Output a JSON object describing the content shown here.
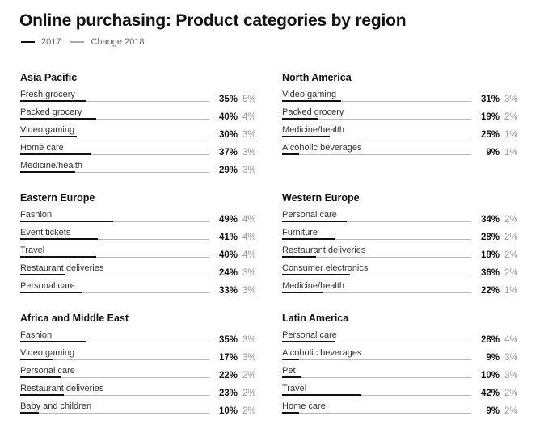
{
  "title": "Online purchasing: Product categories by region",
  "legend": {
    "primary": "2017",
    "secondary": "Change 2018"
  },
  "colors": {
    "bar_2017": "#111111",
    "baseline": "#b8b8b8",
    "change_text": "#999999"
  },
  "chart_data": {
    "type": "bar",
    "title": "Online purchasing: Product categories by region",
    "series_names": [
      "2017",
      "Change 2018"
    ],
    "xlim": [
      0,
      100
    ],
    "grid": false,
    "legend_position": "top-left",
    "panels": [
      {
        "region": "Asia Pacific",
        "rows": [
          {
            "label": "Fresh grocery",
            "value": 35,
            "value_text": "35%",
            "change": 5,
            "change_text": "5%"
          },
          {
            "label": "Packed grocery",
            "value": 40,
            "value_text": "40%",
            "change": 4,
            "change_text": "4%"
          },
          {
            "label": "Video gaming",
            "value": 30,
            "value_text": "30%",
            "change": 3,
            "change_text": "3%"
          },
          {
            "label": "Home care",
            "value": 37,
            "value_text": "37%",
            "change": 3,
            "change_text": "3%"
          },
          {
            "label": "Medicine/health",
            "value": 29,
            "value_text": "29%",
            "change": 3,
            "change_text": "3%"
          }
        ]
      },
      {
        "region": "North America",
        "rows": [
          {
            "label": "Video gaming",
            "value": 31,
            "value_text": "31%",
            "change": 3,
            "change_text": "3%"
          },
          {
            "label": "Packed grocery",
            "value": 19,
            "value_text": "19%",
            "change": 2,
            "change_text": "2%"
          },
          {
            "label": "Medicine/health",
            "value": 25,
            "value_text": "25%",
            "change": 1,
            "change_text": "1%"
          },
          {
            "label": "Alcoholic beverages",
            "value": 9,
            "value_text": "9%",
            "change": 1,
            "change_text": "1%"
          }
        ]
      },
      {
        "region": "Eastern Europe",
        "rows": [
          {
            "label": "Fashion",
            "value": 49,
            "value_text": "49%",
            "change": 4,
            "change_text": "4%"
          },
          {
            "label": "Event tickets",
            "value": 41,
            "value_text": "41%",
            "change": 4,
            "change_text": "4%"
          },
          {
            "label": "Travel",
            "value": 40,
            "value_text": "40%",
            "change": 4,
            "change_text": "4%"
          },
          {
            "label": "Restaurant deliveries",
            "value": 24,
            "value_text": "24%",
            "change": 3,
            "change_text": "3%"
          },
          {
            "label": "Personal care",
            "value": 33,
            "value_text": "33%",
            "change": 3,
            "change_text": "3%"
          }
        ]
      },
      {
        "region": "Western Europe",
        "rows": [
          {
            "label": "Personal care",
            "value": 34,
            "value_text": "34%",
            "change": 2,
            "change_text": "2%"
          },
          {
            "label": "Furniture",
            "value": 28,
            "value_text": "28%",
            "change": 2,
            "change_text": "2%"
          },
          {
            "label": "Restaurant deliveries",
            "value": 18,
            "value_text": "18%",
            "change": 2,
            "change_text": "2%"
          },
          {
            "label": "Consumer electronics",
            "value": 36,
            "value_text": "36%",
            "change": 2,
            "change_text": "2%"
          },
          {
            "label": "Medicine/health",
            "value": 22,
            "value_text": "22%",
            "change": 1,
            "change_text": "1%"
          }
        ]
      },
      {
        "region": "Africa and Middle East",
        "rows": [
          {
            "label": "Fashion",
            "value": 35,
            "value_text": "35%",
            "change": 3,
            "change_text": "3%"
          },
          {
            "label": "Video gaming",
            "value": 17,
            "value_text": "17%",
            "change": 3,
            "change_text": "3%"
          },
          {
            "label": "Personal care",
            "value": 22,
            "value_text": "22%",
            "change": 2,
            "change_text": "2%"
          },
          {
            "label": "Restaurant deliveries",
            "value": 23,
            "value_text": "23%",
            "change": 2,
            "change_text": "2%"
          },
          {
            "label": "Baby and children",
            "value": 10,
            "value_text": "10%",
            "change": 2,
            "change_text": "2%"
          }
        ]
      },
      {
        "region": "Latin America",
        "rows": [
          {
            "label": "Personal care",
            "value": 28,
            "value_text": "28%",
            "change": 4,
            "change_text": "4%"
          },
          {
            "label": "Alcoholic beverages",
            "value": 9,
            "value_text": "9%",
            "change": 3,
            "change_text": "3%"
          },
          {
            "label": "Pet",
            "value": 10,
            "value_text": "10%",
            "change": 3,
            "change_text": "3%"
          },
          {
            "label": "Travel",
            "value": 42,
            "value_text": "42%",
            "change": 2,
            "change_text": "2%"
          },
          {
            "label": "Home care",
            "value": 9,
            "value_text": "9%",
            "change": 2,
            "change_text": "2%"
          }
        ]
      }
    ]
  }
}
